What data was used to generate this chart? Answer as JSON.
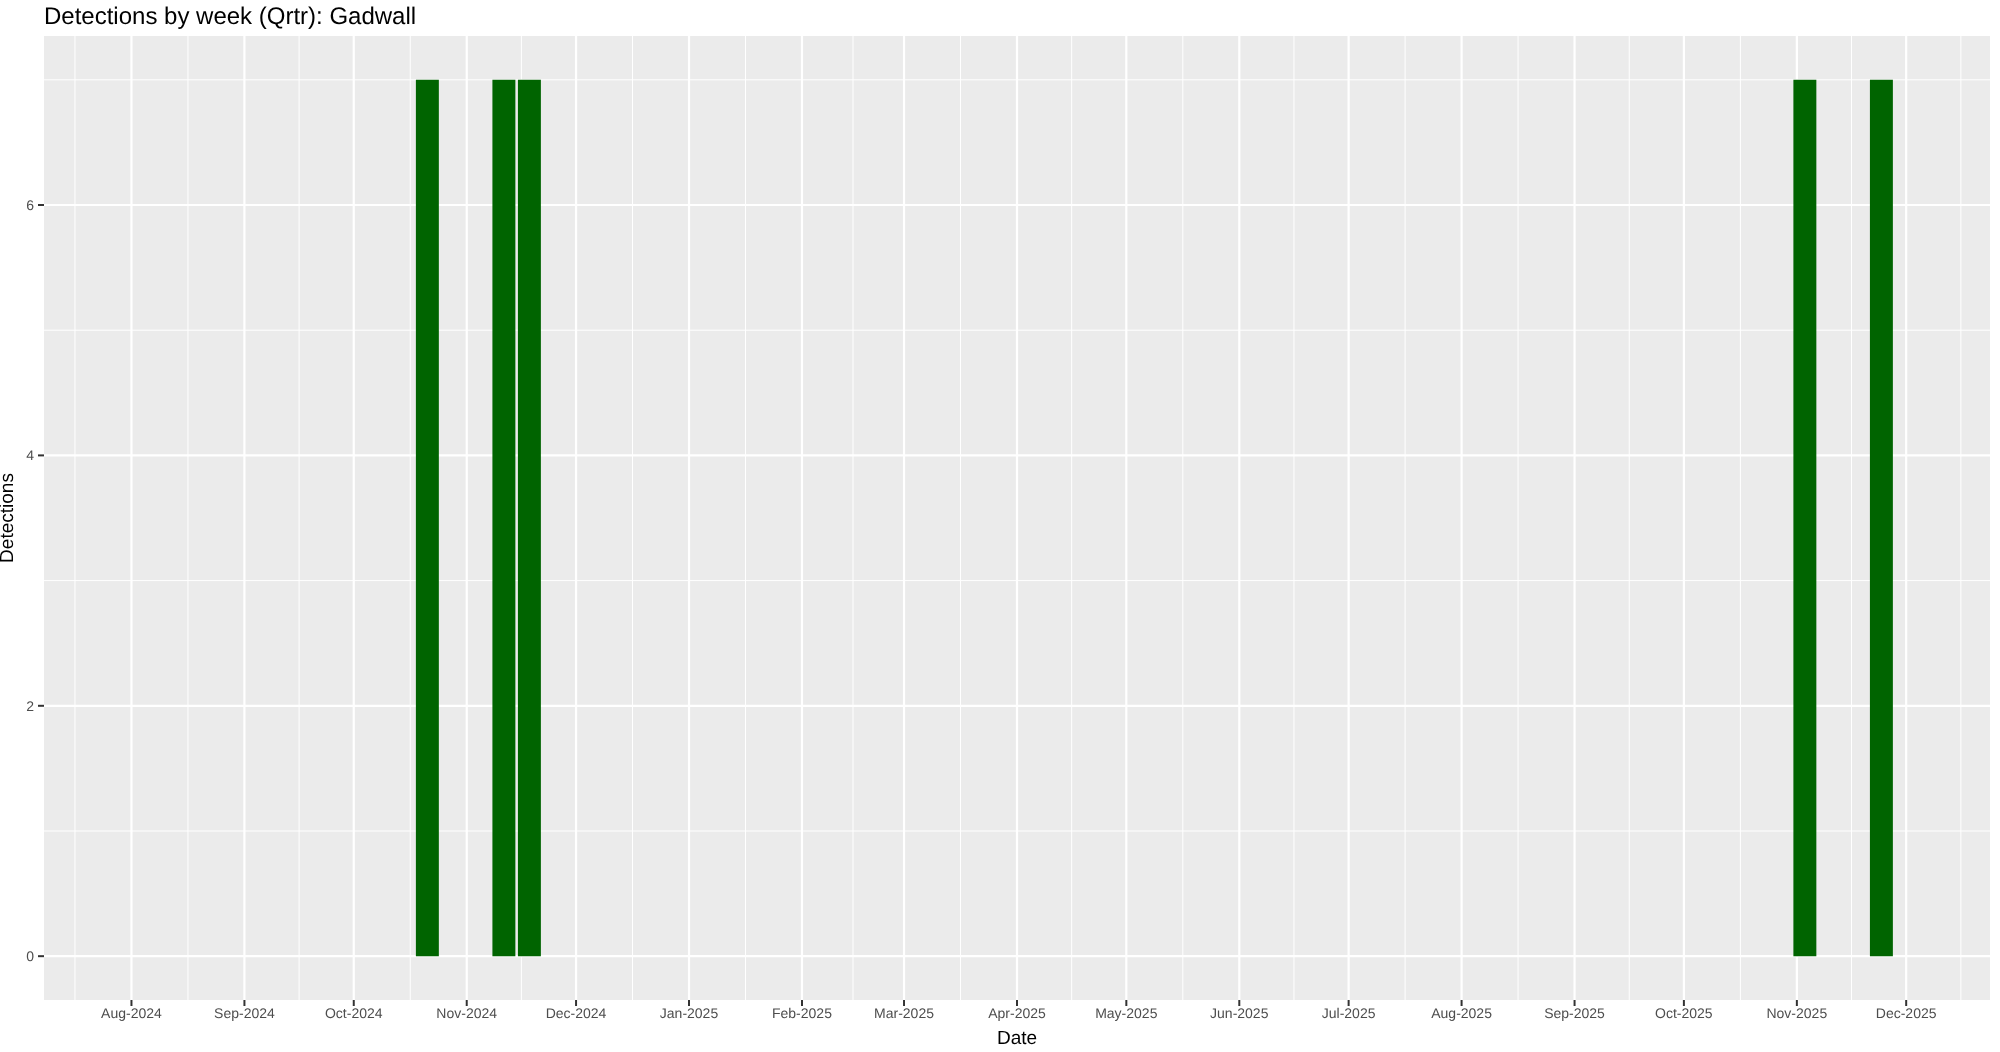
{
  "chart_data": {
    "type": "bar",
    "title": "Detections by week (Qrtr): Gadwall",
    "xlabel": "Date",
    "ylabel": "Detections",
    "x": [
      "2024-10-21",
      "2024-11-11",
      "2024-11-18",
      "2025-11-03",
      "2025-11-24"
    ],
    "values": [
      7,
      7,
      7,
      7,
      7
    ],
    "color": "#006400",
    "xlim": [
      "2024-07-08",
      "2025-12-24"
    ],
    "xticks": [
      {
        "value": "2024-08-01",
        "label": "Aug-2024"
      },
      {
        "value": "2024-09-01",
        "label": "Sep-2024"
      },
      {
        "value": "2024-10-01",
        "label": "Oct-2024"
      },
      {
        "value": "2024-11-01",
        "label": "Nov-2024"
      },
      {
        "value": "2024-12-01",
        "label": "Dec-2024"
      },
      {
        "value": "2025-01-01",
        "label": "Jan-2025"
      },
      {
        "value": "2025-02-01",
        "label": "Feb-2025"
      },
      {
        "value": "2025-03-01",
        "label": "Mar-2025"
      },
      {
        "value": "2025-04-01",
        "label": "Apr-2025"
      },
      {
        "value": "2025-05-01",
        "label": "May-2025"
      },
      {
        "value": "2025-06-01",
        "label": "Jun-2025"
      },
      {
        "value": "2025-07-01",
        "label": "Jul-2025"
      },
      {
        "value": "2025-08-01",
        "label": "Aug-2025"
      },
      {
        "value": "2025-09-01",
        "label": "Sep-2025"
      },
      {
        "value": "2025-10-01",
        "label": "Oct-2025"
      },
      {
        "value": "2025-11-01",
        "label": "Nov-2025"
      },
      {
        "value": "2025-12-01",
        "label": "Dec-2025"
      }
    ],
    "ylim": [
      -0.35,
      7.35
    ],
    "yticks": [
      0,
      2,
      4,
      6
    ],
    "grid": true
  }
}
